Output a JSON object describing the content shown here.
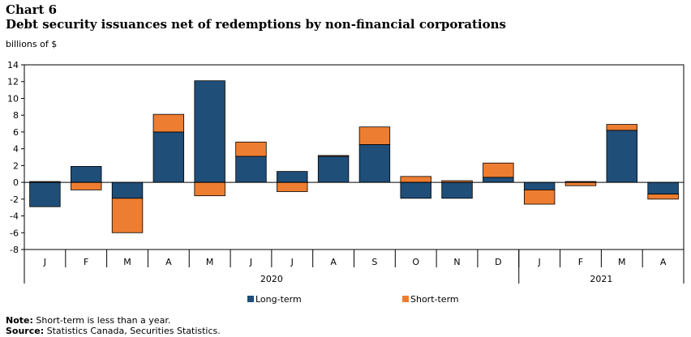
{
  "header": {
    "chart_number": "Chart 6",
    "title": "Debt security issuances net of redemptions by non-financial  corporations"
  },
  "footer": {
    "note_label": "Note:",
    "note_text": "Short-term is less than a year.",
    "source_label": "Source:",
    "source_text": "Statistics Canada, Securities Statistics."
  },
  "colors": {
    "long_term": "#1f4e79",
    "short_term": "#ed7d31"
  },
  "chart_data": {
    "type": "bar",
    "stacked": true,
    "title": "Debt security issuances net of redemptions by non-financial  corporations",
    "ylabel": "billions of $",
    "ylim": [
      -8,
      14
    ],
    "yticks": [
      -8,
      -6,
      -4,
      -2,
      0,
      2,
      4,
      6,
      8,
      10,
      12,
      14
    ],
    "grid": false,
    "legend_position": "bottom",
    "categories": [
      "J",
      "F",
      "M",
      "A",
      "M",
      "J",
      "J",
      "A",
      "S",
      "O",
      "N",
      "D",
      "J",
      "F",
      "M",
      "A"
    ],
    "groups": [
      {
        "label": "2020",
        "start": 0,
        "end": 11
      },
      {
        "label": "2021",
        "start": 12,
        "end": 15
      }
    ],
    "series": [
      {
        "name": "Long-term",
        "values": [
          -2.9,
          1.9,
          -1.9,
          6.0,
          12.1,
          3.1,
          1.3,
          3.1,
          4.5,
          -1.9,
          -1.9,
          0.6,
          -0.9,
          0.1,
          6.2,
          -1.4
        ]
      },
      {
        "name": "Short-term",
        "values": [
          0.1,
          -0.9,
          -4.1,
          2.1,
          -1.6,
          1.7,
          -1.1,
          0.1,
          2.1,
          0.7,
          0.2,
          1.7,
          -1.7,
          -0.4,
          0.7,
          -0.6
        ]
      }
    ]
  }
}
